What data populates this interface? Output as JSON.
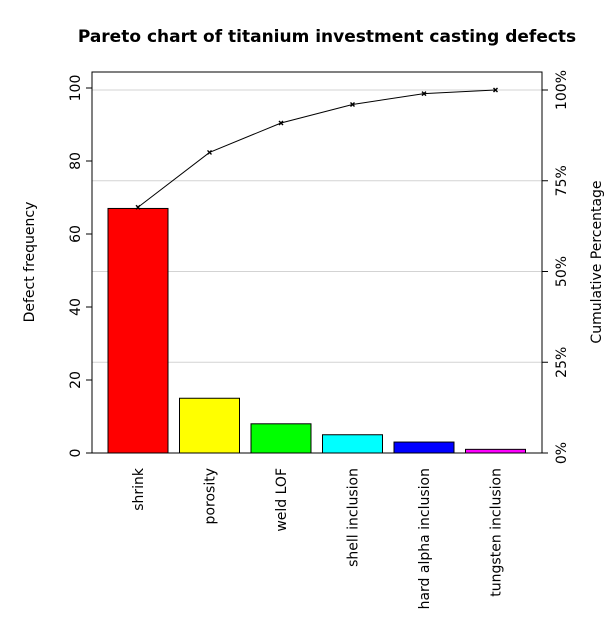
{
  "chart_data": {
    "type": "bar",
    "title": "Pareto chart of titanium investment casting defects",
    "categories": [
      "shrink",
      "porosity",
      "weld LOF",
      "shell inclusion",
      "hard alpha inclusion",
      "tungsten inclusion"
    ],
    "values": [
      67,
      15,
      8,
      5,
      3,
      1
    ],
    "bar_colors": [
      "#ff0000",
      "#ffff00",
      "#00ff00",
      "#00ffff",
      "#0000ff",
      "#ff00ff"
    ],
    "cumulative_percent": [
      67.7,
      82.8,
      90.9,
      96.0,
      99.0,
      100.0
    ],
    "ylabel": "Defect frequency",
    "ylabel_right": "Cumulative Percentage",
    "ylim": [
      0,
      100
    ],
    "yticks": [
      "0",
      "20",
      "40",
      "60",
      "80",
      "100"
    ],
    "y2ticks": [
      "0%",
      "25%",
      "50%",
      "75%",
      "100%"
    ],
    "grid": "horizontal at cumulative quartiles",
    "grid_color": "#d3d3d3"
  }
}
